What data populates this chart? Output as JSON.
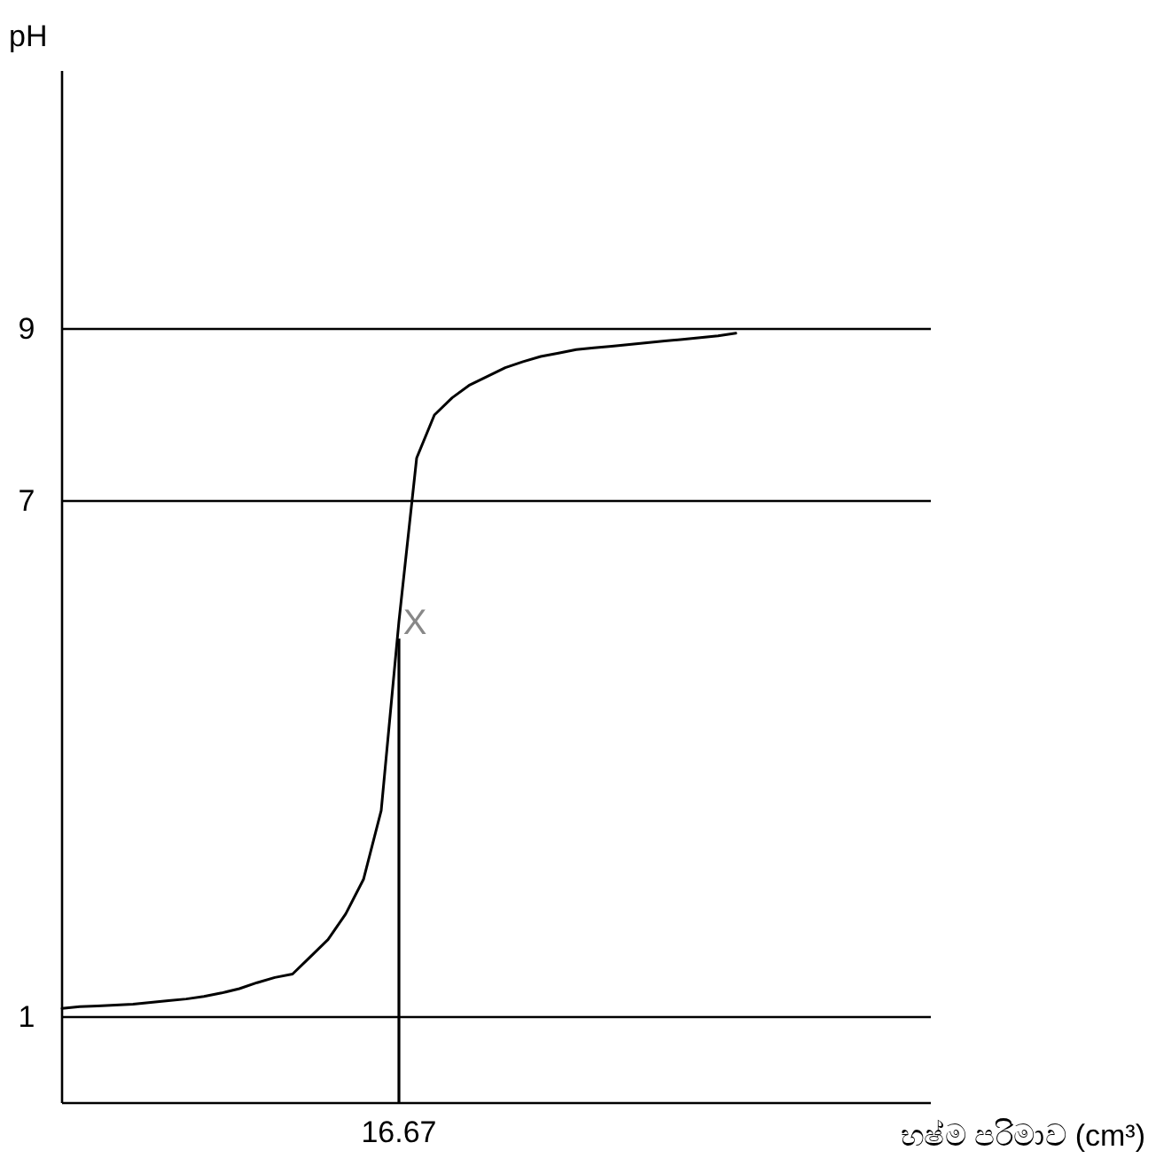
{
  "chart_data": {
    "type": "line",
    "ylabel": "pH",
    "xlabel": "භෂ්ම පරිමාව (cm³)",
    "categories": [
      null,
      null,
      null,
      null,
      null,
      null,
      null,
      null,
      null,
      null,
      null,
      null,
      null,
      null,
      null,
      null,
      null,
      null,
      null,
      "16.67",
      null,
      null,
      null,
      null,
      null,
      null,
      null,
      null,
      null,
      null,
      null,
      null,
      null,
      null,
      null,
      null,
      null,
      null,
      null,
      null,
      null,
      null,
      null,
      null,
      null,
      null,
      null,
      null,
      null,
      null
    ],
    "ylim": [
      0,
      12
    ],
    "yticks": [
      1,
      7,
      9
    ],
    "grid": "y",
    "series": [
      {
        "color": "#000000",
        "values": [
          1.1,
          1.12,
          1.13,
          1.14,
          1.15,
          1.17,
          1.19,
          1.21,
          1.24,
          1.28,
          1.33,
          1.4,
          1.46,
          1.5,
          1.7,
          1.9,
          2.2,
          2.6,
          3.4,
          5.6,
          7.5,
          8.0,
          8.2,
          8.35,
          8.45,
          8.55,
          8.62,
          8.68,
          8.72,
          8.76,
          8.78,
          8.8,
          8.82,
          8.84,
          8.86,
          8.88,
          8.9,
          8.92,
          8.95,
          null,
          null,
          null,
          null,
          null,
          null,
          null,
          null,
          null,
          null,
          null
        ]
      },
      {
        "type": "bar",
        "color": "#000000",
        "values": [
          null,
          null,
          null,
          null,
          null,
          null,
          null,
          null,
          null,
          null,
          null,
          null,
          null,
          null,
          null,
          null,
          null,
          null,
          null,
          5.4,
          null,
          null,
          null,
          null,
          null,
          null,
          null,
          null,
          null,
          null,
          null,
          null,
          null,
          null,
          null,
          null,
          null,
          null,
          null,
          null,
          null,
          null,
          null,
          null,
          null,
          null,
          null,
          null,
          null,
          null
        ]
      }
    ],
    "annotations": [
      {
        "text": "X",
        "x": "16.67",
        "y": 5.6
      }
    ]
  }
}
